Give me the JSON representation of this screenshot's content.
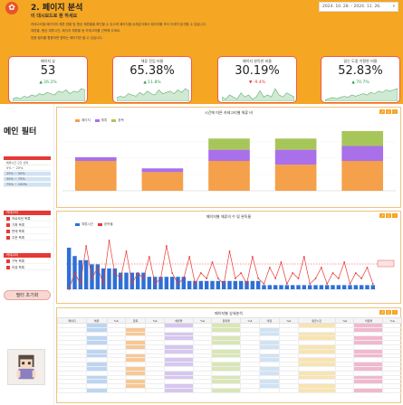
{
  "header": {
    "title": "2. 페이지 분석",
    "subtitle": "이 대시보드로 뭔 하세요",
    "desc": [
      "카테고리별 페이지의 체류 현황 및 평균 체류율을 확인할 수 있으며 페이지별 상세분석에서 페이지를 보다 자세히 분석할 수 있습니다.",
      "체류율, 평균 체류시간, 페이지 체류율 등 카테고리를 선택해 주세요.",
      "맞춤 필터를 활용하면 원하는 페이지만 볼 수 있습니다."
    ],
    "date_range": "2024. 10. 28. - 2024. 11. 26.",
    "date_arrow": "▾"
  },
  "kpis": [
    {
      "label": "페이지 뷰",
      "value": "53",
      "change": "▲ 26.2%",
      "dir": "up",
      "spark": [
        2,
        3,
        2,
        4,
        3,
        5,
        4,
        6,
        5,
        7,
        6,
        5,
        8,
        7,
        9,
        6,
        8,
        7,
        10,
        9
      ]
    },
    {
      "label": "체류 진입 비율",
      "value": "65.38%",
      "change": "▲ 11.8%",
      "dir": "up",
      "spark": [
        3,
        4,
        3,
        6,
        5,
        4,
        7,
        5,
        8,
        6,
        5,
        9,
        6,
        7,
        8,
        6,
        9,
        7,
        10,
        8
      ]
    },
    {
      "label": "페이지 완독한 비율",
      "value": "30.19%",
      "change": "▼ -9.4%",
      "dir": "down",
      "spark": [
        2,
        1,
        3,
        2,
        1,
        4,
        2,
        3,
        1,
        2,
        5,
        2,
        3,
        2,
        6,
        3,
        2,
        4,
        3,
        2
      ]
    },
    {
      "label": "읽는 도중 이탈한 비율",
      "value": "52.83%",
      "change": "▲ 70.7%",
      "dir": "up",
      "spark": [
        1,
        2,
        3,
        2,
        3,
        4,
        3,
        5,
        4,
        5,
        6,
        5,
        7,
        6,
        8,
        7,
        9,
        8,
        9,
        10
      ]
    }
  ],
  "sidebar": {
    "title": "메인 필터",
    "header_label": "체류시간 구간 선택",
    "ranges": [
      "0% ~ 25%",
      "25% ~ 50%",
      "50% ~ 75%",
      "75% ~ 100%"
    ],
    "group_label": "카테고리",
    "categories": [
      "프로모션 목록",
      "기획 목록",
      "판매 목록",
      "주문 목록"
    ],
    "group2_label": "카테고리",
    "categories2": [
      "구독 목록",
      "리뷰 목록"
    ],
    "reset_label": "필터 초기화"
  },
  "panels": {
    "p1_title": "시간에 따른 카테고리별 체류 비",
    "p1_legend": [
      "페이지",
      "체류",
      "완독"
    ],
    "p2_title": "페이지별 체류의 수 및 완독율",
    "p2_legend": [
      "체류시간",
      "완독율"
    ],
    "p3_title": "페이지별 상세분석",
    "tools": [
      "↗",
      "⇩",
      "⋮"
    ],
    "p3_headers": [
      "페이지",
      "체류",
      "%Δ",
      "완독",
      "%Δ",
      "체류율",
      "%Δ",
      "완독율",
      "%Δ",
      "이탈",
      "%Δ",
      "평균시간",
      "%Δ",
      "이탈율",
      "%Δ"
    ]
  },
  "colors": {
    "accent": "#f5a623",
    "red": "#e53935",
    "bar_orange": "#f5a04a",
    "bar_purple": "#a970ea",
    "bar_green": "#a7c65a",
    "bar_blue": "#2f6fd6"
  },
  "chart_data": [
    {
      "type": "bar",
      "title": "시간에 따른 카테고리별 체류 비",
      "categories": [
        "",
        "",
        "",
        "",
        ""
      ],
      "series": [
        {
          "name": "페이지",
          "values": [
            8,
            5,
            8,
            7,
            8
          ]
        },
        {
          "name": "체류",
          "values": [
            1,
            1,
            3,
            4,
            4
          ]
        },
        {
          "name": "완독",
          "values": [
            0,
            0,
            3,
            3,
            4
          ]
        }
      ]
    },
    {
      "type": "bar",
      "title": "페이지별 체류의 수 및 완독율",
      "series": [
        {
          "name": "체류시간",
          "values": [
            10,
            8,
            7,
            7,
            6,
            6,
            5,
            5,
            5,
            4,
            4,
            4,
            4,
            4,
            3,
            3,
            3,
            3,
            3,
            3,
            3,
            2,
            2,
            2,
            2,
            2,
            2,
            2,
            2,
            2,
            2,
            2,
            2,
            2,
            1,
            1,
            1,
            1,
            1,
            1,
            1,
            1,
            1,
            1,
            1,
            1,
            1,
            1,
            1,
            1,
            1,
            1,
            1,
            1
          ]
        },
        {
          "name": "완독율",
          "values": [
            0,
            30,
            10,
            80,
            20,
            40,
            10,
            90,
            30,
            20,
            70,
            10,
            30,
            20,
            60,
            10,
            20,
            80,
            30,
            10,
            20,
            60,
            10,
            30,
            20,
            50,
            20,
            10,
            70,
            20,
            30,
            10,
            60,
            20,
            10,
            40,
            20,
            50,
            10,
            30,
            20,
            60,
            10,
            20,
            40,
            10,
            30,
            20,
            50,
            10,
            30,
            20,
            40,
            10
          ]
        }
      ]
    }
  ]
}
